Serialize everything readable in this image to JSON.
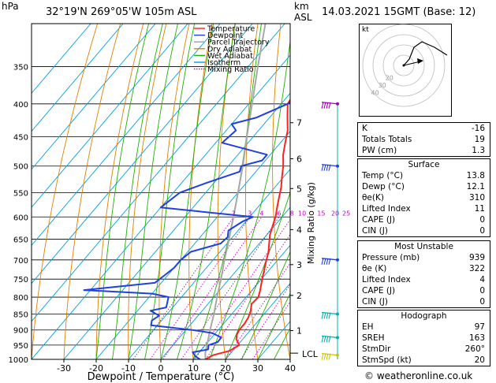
{
  "header": {
    "units": "hPa",
    "location": "32°19'N 269°05'W 105m ASL",
    "km_label": "km",
    "asl_label": "ASL",
    "datetime": "14.03.2021 15GMT (Base: 12)"
  },
  "legend": [
    {
      "label": "Temperature",
      "color": "#ff2020",
      "style": "solid"
    },
    {
      "label": "Dewpoint",
      "color": "#2040e0",
      "style": "solid"
    },
    {
      "label": "Parcel Trajectory",
      "color": "#a0a0a0",
      "style": "solid"
    },
    {
      "label": "Dry Adiabat",
      "color": "#e08000",
      "style": "solid"
    },
    {
      "label": "Wet Adiabat",
      "color": "#20b000",
      "style": "solid"
    },
    {
      "label": "Isotherm",
      "color": "#00a0e0",
      "style": "solid"
    },
    {
      "label": "Mixing Ratio",
      "color": "#c000c0",
      "style": "dotted"
    }
  ],
  "chart_data": {
    "type": "line",
    "xlabel": "Dewpoint / Temperature (°C)",
    "ylabel": "",
    "right_label": "Mixing Ratio (g/kg)",
    "x_ticks": [
      "-30",
      "-20",
      "-10",
      "0",
      "10",
      "20",
      "30",
      "40"
    ],
    "xlim": [
      -40,
      40
    ],
    "pressure_levels": [
      "300",
      "350",
      "400",
      "450",
      "500",
      "550",
      "600",
      "650",
      "700",
      "750",
      "800",
      "850",
      "900",
      "950",
      "1000"
    ],
    "pressure_labels": [
      "350",
      "400",
      "450",
      "500",
      "550",
      "600",
      "650",
      "700",
      "750",
      "800",
      "850",
      "900",
      "950",
      "1000"
    ],
    "ylim": [
      1000,
      300
    ],
    "km_ticks": [
      {
        "km": "7",
        "p": 428
      },
      {
        "km": "6",
        "p": 487
      },
      {
        "km": "5",
        "p": 542
      },
      {
        "km": "4",
        "p": 628
      },
      {
        "km": "3",
        "p": 712
      },
      {
        "km": "2",
        "p": 795
      },
      {
        "km": "1",
        "p": 902
      }
    ],
    "lcl_label": "LCL",
    "lcl_p": 978,
    "mixing_ratio_labels": [
      "2",
      "3",
      "4",
      "6",
      "8",
      "10",
      "15",
      "20",
      "25"
    ],
    "temperature": {
      "p": [
        1000,
        985,
        970,
        950,
        930,
        915,
        900,
        880,
        860,
        840,
        820,
        800,
        780,
        760,
        740,
        720,
        700,
        680,
        660,
        640,
        620,
        600,
        580,
        560,
        540,
        520,
        500,
        480,
        460,
        440,
        420,
        400,
        380,
        360
      ],
      "t": [
        13.8,
        15,
        19,
        20.5,
        18,
        17,
        16.5,
        16.5,
        16,
        15,
        13.5,
        13.8,
        12.5,
        11,
        9.5,
        8,
        6.5,
        5,
        3,
        1,
        -0.5,
        -2,
        -4,
        -6,
        -8,
        -10.5,
        -13,
        -16,
        -18.5,
        -21,
        -24.5,
        -28,
        -29,
        -30
      ]
    },
    "dewpoint": {
      "p": [
        1000,
        990,
        975,
        965,
        950,
        940,
        925,
        910,
        900,
        885,
        870,
        855,
        840,
        830,
        800,
        790,
        780,
        760,
        740,
        720,
        700,
        680,
        660,
        645,
        630,
        610,
        600,
        580,
        550,
        530,
        510,
        500,
        490,
        480,
        460,
        440,
        430,
        420,
        400,
        390,
        380,
        360
      ],
      "t": [
        12.1,
        10,
        8,
        12,
        11,
        13,
        13,
        9,
        2,
        -12,
        -13,
        -12,
        -16,
        -12,
        -14,
        -20,
        -42,
        -22,
        -21,
        -20,
        -20,
        -19,
        -12,
        -11.5,
        -13,
        -11,
        -9,
        -40,
        -38,
        -32,
        -25,
        -26,
        -21,
        -21,
        -38,
        -37,
        -40,
        -34,
        -28,
        -27,
        -28,
        -28
      ]
    },
    "parcel": {
      "p": [
        1000,
        978,
        950,
        900,
        850,
        800,
        750,
        700,
        650,
        600,
        550,
        500,
        450,
        400,
        350,
        300
      ],
      "t": [
        13.8,
        12.1,
        10.5,
        7.5,
        4.5,
        1,
        -2.5,
        -6.5,
        -10.5,
        -15,
        -20,
        -25.5,
        -32,
        -39,
        -47,
        -56
      ]
    },
    "wind_barbs": [
      {
        "p": 400,
        "color": "#a000c0"
      },
      {
        "p": 500,
        "color": "#2040e0"
      },
      {
        "p": 700,
        "color": "#2040e0"
      },
      {
        "p": 850,
        "color": "#00b0b0"
      },
      {
        "p": 925,
        "color": "#00b0b0"
      },
      {
        "p": 985,
        "color": "#c8c800"
      }
    ]
  },
  "hodograph": {
    "label": "kt",
    "rings": [
      "40",
      "30",
      "20"
    ]
  },
  "indices": [
    {
      "label": "K",
      "value": "-16"
    },
    {
      "label": "Totals Totals",
      "value": "19"
    },
    {
      "label": "PW (cm)",
      "value": "1.3"
    }
  ],
  "surface": {
    "title": "Surface",
    "rows": [
      {
        "label": "Temp (°C)",
        "value": "13.8"
      },
      {
        "label": "Dewp (°C)",
        "value": "12.1"
      },
      {
        "label": "θe(K)",
        "value": "310"
      },
      {
        "label": "Lifted Index",
        "value": "11"
      },
      {
        "label": "CAPE (J)",
        "value": "0"
      },
      {
        "label": "CIN (J)",
        "value": "0"
      }
    ]
  },
  "most_unstable": {
    "title": "Most Unstable",
    "rows": [
      {
        "label": "Pressure (mb)",
        "value": "939"
      },
      {
        "label": "θe (K)",
        "value": "322"
      },
      {
        "label": "Lifted Index",
        "value": "4"
      },
      {
        "label": "CAPE (J)",
        "value": "0"
      },
      {
        "label": "CIN (J)",
        "value": "0"
      }
    ]
  },
  "hodograph_table": {
    "title": "Hodograph",
    "rows": [
      {
        "label": "EH",
        "value": "97"
      },
      {
        "label": "SREH",
        "value": "163"
      },
      {
        "label": "StmDir",
        "value": "260°"
      },
      {
        "label": "StmSpd (kt)",
        "value": "20"
      }
    ]
  },
  "footer": "© weatheronline.co.uk"
}
